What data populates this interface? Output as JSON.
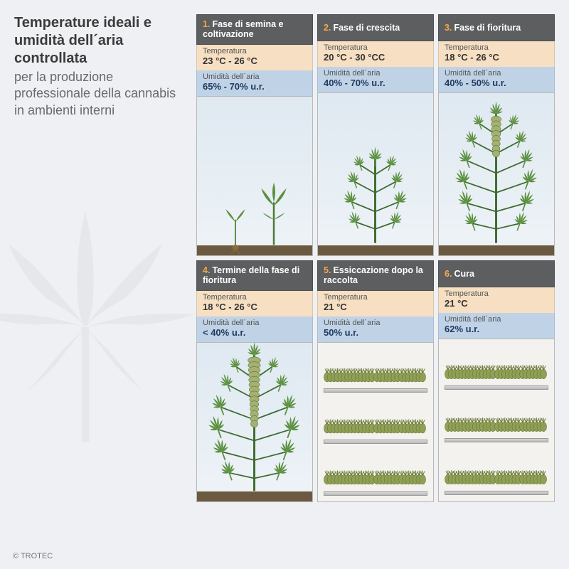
{
  "title": {
    "bold": "Temperature ideali e umidità dell´aria controllata",
    "light": "per la produzione professionale della cannabis in ambienti interni"
  },
  "labels": {
    "temperature": "Temperatura",
    "humidity": "Umidità dell´aria"
  },
  "colors": {
    "header_bg": "#5c5e60",
    "header_num": "#f7a64a",
    "temp_row_bg": "#f6dfc2",
    "hum_row_bg": "#c0d3e6",
    "hum_value": "#1e3a5f",
    "page_bg": "#eef0f3",
    "leaf_bg": "#d6d9dd",
    "plant_green_dark": "#3d6b2f",
    "plant_green_mid": "#5a8f3e",
    "plant_green_light": "#7fae57",
    "ground": "#6b5a40",
    "bud": "#a6b071"
  },
  "phases": [
    {
      "num": "1.",
      "name": "Fase di semina e coltivazione",
      "temp": "23 °C - 26 °C",
      "hum": "65% - 70% u.r.",
      "ill": "seedling"
    },
    {
      "num": "2.",
      "name": "Fase di crescita",
      "temp": "20 °C - 30 °CC",
      "hum": "40% - 70% u.r.",
      "ill": "veg"
    },
    {
      "num": "3.",
      "name": "Fase di fioritura",
      "temp": "18 °C - 26 °C",
      "hum": "40% - 50% u.r.",
      "ill": "flower"
    },
    {
      "num": "4.",
      "name": "Termine della fase di fioritura",
      "temp": "18 °C - 26 °C",
      "hum": "< 40% u.r.",
      "ill": "lateflower"
    },
    {
      "num": "5.",
      "name": "Essiccazione dopo la raccolta",
      "temp": "21 °C",
      "hum": "50% u.r.",
      "ill": "dry"
    },
    {
      "num": "6.",
      "name": "Cura",
      "temp": "21 °C",
      "hum": "62% u.r.",
      "ill": "cure"
    }
  ],
  "copyright": "© TROTEC"
}
